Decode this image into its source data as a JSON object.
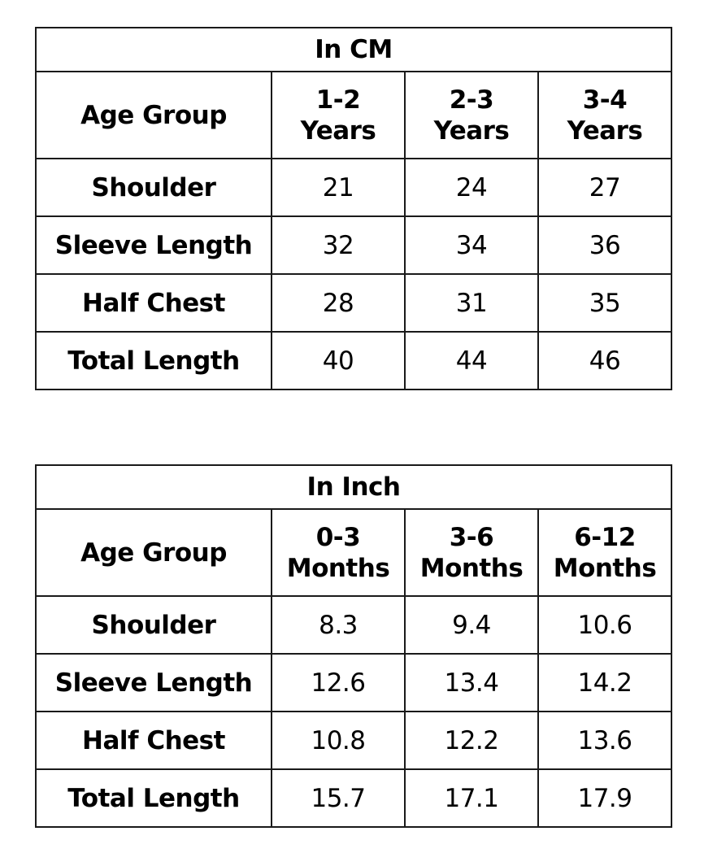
{
  "tables": [
    {
      "title": "In CM",
      "age_group_label": "Age Group",
      "columns": [
        {
          "range": "1-2",
          "unit": "Years"
        },
        {
          "range": "2-3",
          "unit": "Years"
        },
        {
          "range": "3-4",
          "unit": "Years"
        }
      ],
      "rows": [
        {
          "label": "Shoulder",
          "values": [
            "21",
            "24",
            "27"
          ]
        },
        {
          "label": "Sleeve Length",
          "values": [
            "32",
            "34",
            "36"
          ]
        },
        {
          "label": "Half Chest",
          "values": [
            "28",
            "31",
            "35"
          ]
        },
        {
          "label": "Total Length",
          "values": [
            "40",
            "44",
            "46"
          ]
        }
      ]
    },
    {
      "title": "In Inch",
      "age_group_label": "Age Group",
      "columns": [
        {
          "range": "0-3",
          "unit": "Months"
        },
        {
          "range": "3-6",
          "unit": "Months"
        },
        {
          "range": "6-12",
          "unit": "Months"
        }
      ],
      "rows": [
        {
          "label": "Shoulder",
          "values": [
            "8.3",
            "9.4",
            "10.6"
          ]
        },
        {
          "label": "Sleeve Length",
          "values": [
            "12.6",
            "13.4",
            "14.2"
          ]
        },
        {
          "label": "Half Chest",
          "values": [
            "10.8",
            "12.2",
            "13.6"
          ]
        },
        {
          "label": "Total Length",
          "values": [
            "15.7",
            "17.1",
            "17.9"
          ]
        }
      ]
    }
  ]
}
